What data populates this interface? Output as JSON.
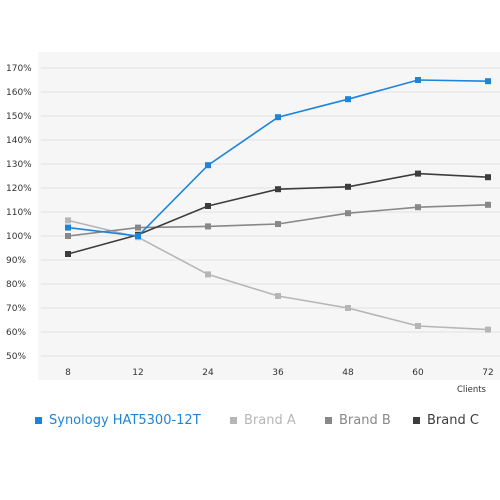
{
  "chart_data": {
    "type": "line",
    "title": "",
    "xlabel": "Clients",
    "ylabel": "",
    "categories": [
      "8",
      "12",
      "24",
      "36",
      "48",
      "60",
      "72"
    ],
    "ylim": [
      50,
      170
    ],
    "yticks": [
      50,
      60,
      70,
      80,
      90,
      100,
      110,
      120,
      130,
      140,
      150,
      160,
      170
    ],
    "ytick_labels": [
      "50%",
      "60%",
      "70%",
      "80%",
      "90%",
      "100%",
      "110%",
      "120%",
      "130%",
      "140%",
      "150%",
      "160%",
      "170%"
    ],
    "grid": "horizontal",
    "legend_position": "bottom",
    "series": [
      {
        "name": "Synology HAT5300-12T",
        "color": "#1d84d9",
        "values": [
          103.5,
          100,
          129.5,
          149.5,
          157,
          165,
          164.5
        ]
      },
      {
        "name": "Brand A",
        "color": "#b6b6b6",
        "values": [
          106.5,
          99.5,
          84,
          75,
          70,
          62.5,
          61
        ]
      },
      {
        "name": "Brand B",
        "color": "#888888",
        "values": [
          100,
          103.5,
          104,
          105,
          109.5,
          112,
          113
        ]
      },
      {
        "name": "Brand C",
        "color": "#3d3d3d",
        "values": [
          92.5,
          100.5,
          112.5,
          119.5,
          120.5,
          126,
          124.5
        ]
      }
    ]
  }
}
